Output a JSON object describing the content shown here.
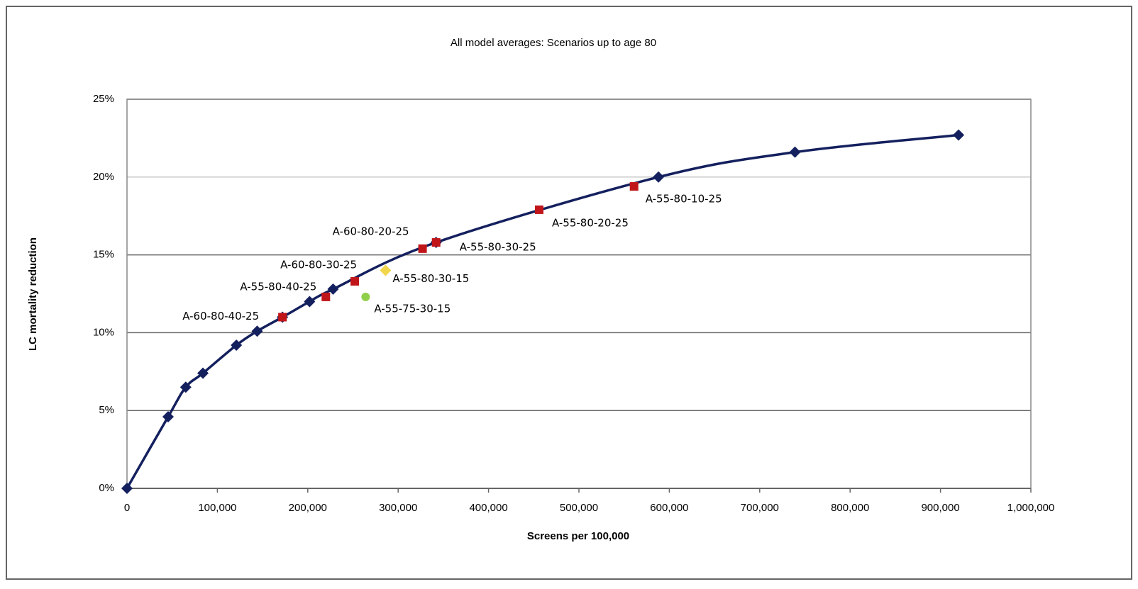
{
  "chart_data": {
    "type": "line",
    "title": "All model averages: Scenarios up to age 80",
    "x_label": "Screens per 100,000",
    "y_label": "LC mortality reduction",
    "xlim": [
      0,
      1000000
    ],
    "ylim": [
      0,
      25
    ],
    "xticks": [
      0,
      {
        "value": 100000,
        "label": "100,000"
      },
      {
        "value": 200000,
        "label": "200,000"
      },
      {
        "value": 300000,
        "label": "300,000"
      },
      {
        "value": 400000,
        "label": "400,000"
      },
      {
        "value": 500000,
        "label": "500,000"
      },
      {
        "value": 600000,
        "label": "600,000"
      },
      {
        "value": 700000,
        "label": "700,000"
      },
      {
        "value": 800000,
        "label": "800,000"
      },
      {
        "value": 900000,
        "label": "900,000"
      },
      {
        "value": 1000000,
        "label": "1,000,000"
      }
    ],
    "yticks": [
      {
        "value": 0,
        "label": "0%"
      },
      {
        "value": 5,
        "label": "5%"
      },
      {
        "value": 10,
        "label": "10%"
      },
      {
        "value": 15,
        "label": "15%"
      },
      {
        "value": 20,
        "label": "20%"
      },
      {
        "value": 25,
        "label": "25%"
      }
    ],
    "grid": true,
    "series": [
      {
        "color": "#14205e",
        "marker": "diamond",
        "line": true,
        "x": [
          0,
          45500,
          65000,
          84000,
          121000,
          144000,
          172000,
          202000,
          228000,
          342000,
          588000,
          739000,
          920000
        ],
        "values": [
          0,
          4.6,
          6.5,
          7.4,
          9.2,
          10.1,
          11.0,
          12.0,
          12.8,
          15.8,
          20.0,
          21.6,
          22.7
        ]
      },
      {
        "color": "#c0161a",
        "marker": "square",
        "line": false,
        "x": [
          172000,
          220000,
          252000,
          327000,
          342000,
          456000,
          561000
        ],
        "values": [
          11.0,
          12.3,
          13.3,
          15.4,
          15.8,
          17.9,
          19.4
        ],
        "labels": [
          "A-60-80-40-25",
          "A-55-80-40-25",
          "A-60-80-30-25",
          "A-60-80-20-25",
          "A-55-80-30-25",
          "A-55-80-20-25",
          "A-55-80-10-25"
        ]
      },
      {
        "color": "#f2d64b",
        "marker": "diamond",
        "line": false,
        "x": [
          286000
        ],
        "values": [
          14.0
        ],
        "labels": [
          "A-55-80-30-15"
        ]
      },
      {
        "color": "#8fcf4a",
        "marker": "circle",
        "line": false,
        "x": [
          264000
        ],
        "values": [
          12.3
        ],
        "labels": [
          "A-55-75-30-15"
        ]
      }
    ]
  }
}
